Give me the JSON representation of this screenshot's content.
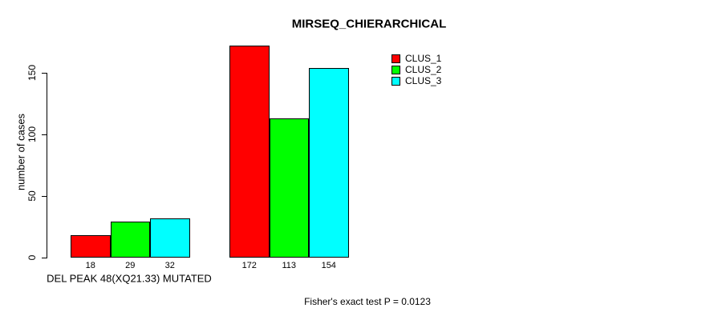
{
  "chart_data": {
    "type": "bar",
    "title": "MIRSEQ_CHIERARCHICAL",
    "ylabel": "number of cases",
    "xlabel": "DEL PEAK 48(XQ21.33) MUTATED",
    "annotation": "Fisher's exact test P = 0.0123",
    "ylim": [
      0,
      175
    ],
    "yticks": [
      0,
      50,
      100,
      150
    ],
    "grid": false,
    "legend_position": "top-right-inside",
    "background": "#ffffff",
    "bar_border_color": "#000000",
    "groups": [
      "DEL PEAK 48(XQ21.33) MUTATED",
      ""
    ],
    "series": [
      {
        "name": "CLUS_1",
        "color": "#ff0000",
        "values": [
          18,
          172
        ]
      },
      {
        "name": "CLUS_2",
        "color": "#00ff00",
        "values": [
          29,
          113
        ]
      },
      {
        "name": "CLUS_3",
        "color": "#00ffff",
        "values": [
          32,
          154
        ]
      }
    ],
    "bar_value_labels": [
      [
        "18",
        "29",
        "32"
      ],
      [
        "172",
        "113",
        "154"
      ]
    ]
  }
}
